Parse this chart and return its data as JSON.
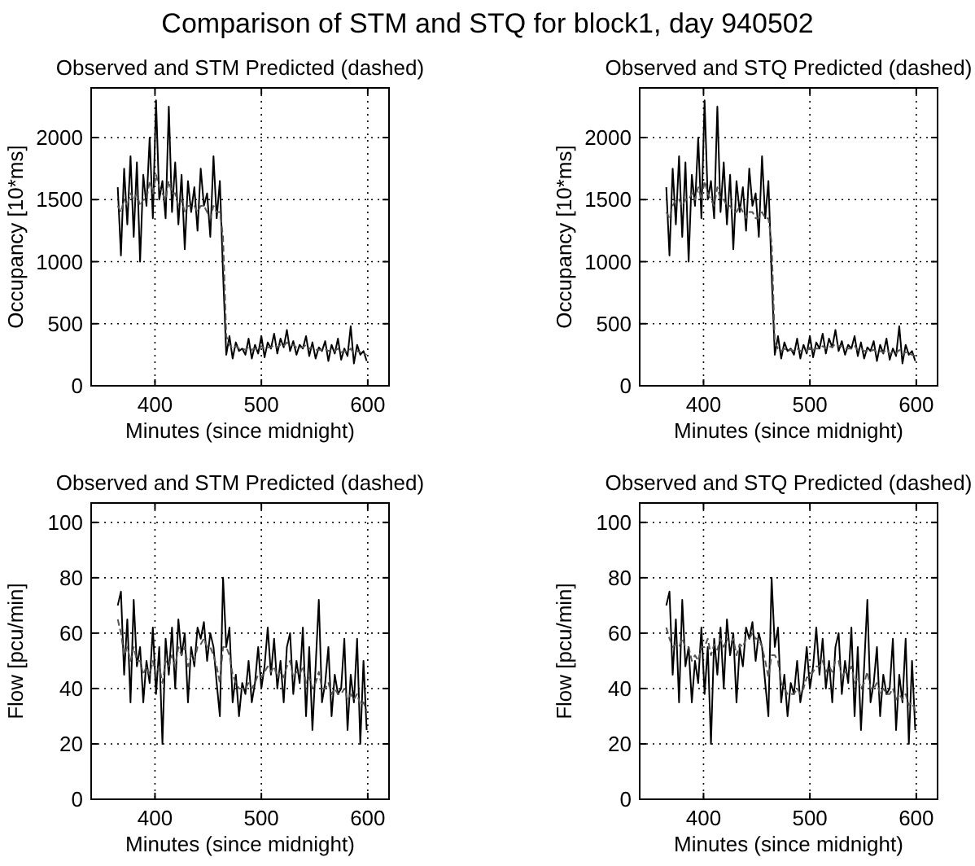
{
  "chart_data": [
    {
      "type": "line",
      "title": "Observed and STM Predicted (dashed)",
      "xlabel": "Minutes (since midnight)",
      "ylabel": "Occupancy [10*ms]",
      "annotations": [
        "Comparison of STM and STQ for block1, day 940502"
      ],
      "xlim": [
        340,
        620
      ],
      "xticks": [
        400,
        500,
        600
      ],
      "ylim": [
        0,
        2400
      ],
      "yticks": [
        0,
        500,
        1000,
        1500,
        2000
      ],
      "grid": true,
      "x": [
        365,
        368,
        371,
        374,
        377,
        380,
        383,
        386,
        389,
        392,
        395,
        398,
        401,
        404,
        407,
        410,
        413,
        416,
        419,
        422,
        425,
        428,
        431,
        434,
        437,
        440,
        443,
        446,
        449,
        452,
        455,
        458,
        461,
        464,
        467,
        470,
        473,
        476,
        479,
        482,
        485,
        488,
        491,
        494,
        497,
        500,
        503,
        506,
        509,
        512,
        515,
        518,
        521,
        524,
        527,
        530,
        533,
        536,
        539,
        542,
        545,
        548,
        551,
        554,
        557,
        560,
        563,
        566,
        569,
        572,
        575,
        578,
        581,
        584,
        587,
        590,
        593,
        596,
        599
      ],
      "series": [
        {
          "color": "#000000",
          "line_style": "solid",
          "values": [
            1600,
            1050,
            1750,
            1300,
            1850,
            1200,
            1800,
            1000,
            1700,
            1450,
            2000,
            1350,
            2300,
            1500,
            1650,
            1350,
            2250,
            1400,
            1800,
            1300,
            1700,
            1100,
            1650,
            1400,
            1600,
            1250,
            1750,
            1450,
            1550,
            1200,
            1850,
            1350,
            1650,
            900,
            250,
            400,
            220,
            350,
            280,
            300,
            250,
            380,
            220,
            330,
            260,
            400,
            230,
            350,
            300,
            420,
            260,
            380,
            310,
            450,
            280,
            360,
            250,
            330,
            300,
            400,
            240,
            350,
            220,
            310,
            280,
            360,
            200,
            330,
            260,
            380,
            210,
            300,
            240,
            480,
            180,
            330,
            250,
            280,
            200
          ]
        },
        {
          "color": "#555555",
          "line_style": "dashed",
          "values": [
            1450,
            1400,
            1500,
            1450,
            1550,
            1500,
            1550,
            1450,
            1500,
            1500,
            1650,
            1550,
            1700,
            1600,
            1550,
            1500,
            1650,
            1550,
            1550,
            1450,
            1500,
            1400,
            1450,
            1450,
            1450,
            1400,
            1450,
            1450,
            1400,
            1350,
            1450,
            1400,
            1400,
            1200,
            400,
            330,
            300,
            320,
            300,
            300,
            290,
            310,
            290,
            300,
            290,
            320,
            300,
            310,
            310,
            330,
            310,
            330,
            320,
            350,
            330,
            330,
            310,
            310,
            310,
            330,
            300,
            310,
            290,
            290,
            290,
            300,
            280,
            290,
            280,
            300,
            270,
            280,
            270,
            300,
            260,
            280,
            270,
            260,
            250
          ]
        }
      ]
    },
    {
      "type": "line",
      "title": "Observed and STQ Predicted (dashed)",
      "xlabel": "Minutes (since midnight)",
      "ylabel": "Occupancy [10*ms]",
      "xlim": [
        340,
        620
      ],
      "xticks": [
        400,
        500,
        600
      ],
      "ylim": [
        0,
        2400
      ],
      "yticks": [
        0,
        500,
        1000,
        1500,
        2000
      ],
      "grid": true,
      "x": [
        365,
        368,
        371,
        374,
        377,
        380,
        383,
        386,
        389,
        392,
        395,
        398,
        401,
        404,
        407,
        410,
        413,
        416,
        419,
        422,
        425,
        428,
        431,
        434,
        437,
        440,
        443,
        446,
        449,
        452,
        455,
        458,
        461,
        464,
        467,
        470,
        473,
        476,
        479,
        482,
        485,
        488,
        491,
        494,
        497,
        500,
        503,
        506,
        509,
        512,
        515,
        518,
        521,
        524,
        527,
        530,
        533,
        536,
        539,
        542,
        545,
        548,
        551,
        554,
        557,
        560,
        563,
        566,
        569,
        572,
        575,
        578,
        581,
        584,
        587,
        590,
        593,
        596,
        599
      ],
      "series": [
        {
          "color": "#000000",
          "line_style": "solid",
          "values": [
            1600,
            1050,
            1750,
            1300,
            1850,
            1200,
            1800,
            1000,
            1700,
            1450,
            2000,
            1350,
            2300,
            1500,
            1650,
            1350,
            2250,
            1400,
            1800,
            1300,
            1700,
            1100,
            1650,
            1400,
            1600,
            1250,
            1750,
            1450,
            1550,
            1200,
            1850,
            1350,
            1650,
            900,
            250,
            400,
            220,
            350,
            280,
            300,
            250,
            380,
            220,
            330,
            260,
            400,
            230,
            350,
            300,
            420,
            260,
            380,
            310,
            450,
            280,
            360,
            250,
            330,
            300,
            400,
            240,
            350,
            220,
            310,
            280,
            360,
            200,
            330,
            260,
            380,
            210,
            300,
            240,
            480,
            180,
            330,
            250,
            280,
            200
          ]
        },
        {
          "color": "#555555",
          "line_style": "dashed",
          "values": [
            1400,
            1350,
            1450,
            1500,
            1500,
            1450,
            1500,
            1500,
            1550,
            1500,
            1600,
            1500,
            1650,
            1550,
            1500,
            1450,
            1600,
            1500,
            1500,
            1450,
            1450,
            1400,
            1400,
            1450,
            1400,
            1350,
            1400,
            1400,
            1350,
            1350,
            1400,
            1350,
            1350,
            1150,
            350,
            300,
            280,
            300,
            280,
            290,
            280,
            300,
            280,
            290,
            280,
            310,
            290,
            300,
            300,
            320,
            300,
            320,
            310,
            340,
            320,
            320,
            300,
            300,
            300,
            320,
            290,
            300,
            280,
            280,
            280,
            290,
            270,
            280,
            270,
            290,
            260,
            270,
            260,
            290,
            250,
            270,
            260,
            250,
            240
          ]
        }
      ]
    },
    {
      "type": "line",
      "title": "Observed and STM Predicted (dashed)",
      "xlabel": "Minutes (since midnight)",
      "ylabel": "Flow [pcu/min]",
      "xlim": [
        340,
        620
      ],
      "xticks": [
        400,
        500,
        600
      ],
      "ylim": [
        0,
        107
      ],
      "yticks": [
        0,
        20,
        40,
        60,
        80,
        100
      ],
      "grid": true,
      "x": [
        365,
        368,
        371,
        374,
        377,
        380,
        383,
        386,
        389,
        392,
        395,
        398,
        401,
        404,
        407,
        410,
        413,
        416,
        419,
        422,
        425,
        428,
        431,
        434,
        437,
        440,
        443,
        446,
        449,
        452,
        455,
        458,
        461,
        464,
        467,
        470,
        473,
        476,
        479,
        482,
        485,
        488,
        491,
        494,
        497,
        500,
        503,
        506,
        509,
        512,
        515,
        518,
        521,
        524,
        527,
        530,
        533,
        536,
        539,
        542,
        545,
        548,
        551,
        554,
        557,
        560,
        563,
        566,
        569,
        572,
        575,
        578,
        581,
        584,
        587,
        590,
        593,
        596,
        599
      ],
      "series": [
        {
          "color": "#000000",
          "line_style": "solid",
          "values": [
            70,
            75,
            45,
            65,
            35,
            72,
            48,
            55,
            35,
            50,
            42,
            62,
            38,
            55,
            20,
            58,
            45,
            62,
            40,
            65,
            52,
            60,
            35,
            55,
            48,
            62,
            58,
            64,
            50,
            60,
            55,
            42,
            30,
            80,
            55,
            62,
            35,
            45,
            30,
            42,
            38,
            50,
            35,
            42,
            55,
            40,
            48,
            62,
            45,
            58,
            40,
            50,
            35,
            55,
            60,
            38,
            50,
            42,
            62,
            30,
            55,
            25,
            48,
            72,
            35,
            42,
            55,
            30,
            45,
            38,
            40,
            58,
            25,
            45,
            35,
            58,
            20,
            50,
            25
          ]
        },
        {
          "color": "#555555",
          "line_style": "dashed",
          "values": [
            65,
            60,
            52,
            55,
            50,
            55,
            50,
            50,
            45,
            48,
            45,
            50,
            45,
            48,
            42,
            50,
            48,
            52,
            48,
            55,
            52,
            55,
            48,
            52,
            50,
            55,
            56,
            58,
            55,
            55,
            52,
            48,
            42,
            55,
            55,
            52,
            45,
            42,
            40,
            40,
            40,
            42,
            40,
            42,
            45,
            44,
            46,
            48,
            46,
            48,
            44,
            46,
            44,
            48,
            50,
            44,
            46,
            45,
            48,
            42,
            44,
            40,
            42,
            46,
            40,
            40,
            42,
            38,
            40,
            38,
            38,
            40,
            36,
            38,
            36,
            38,
            34,
            35,
            32
          ]
        }
      ]
    },
    {
      "type": "line",
      "title": "Observed and STQ Predicted (dashed)",
      "xlabel": "Minutes (since midnight)",
      "ylabel": "Flow [pcu/min]",
      "xlim": [
        340,
        620
      ],
      "xticks": [
        400,
        500,
        600
      ],
      "ylim": [
        0,
        107
      ],
      "yticks": [
        0,
        20,
        40,
        60,
        80,
        100
      ],
      "grid": true,
      "x": [
        365,
        368,
        371,
        374,
        377,
        380,
        383,
        386,
        389,
        392,
        395,
        398,
        401,
        404,
        407,
        410,
        413,
        416,
        419,
        422,
        425,
        428,
        431,
        434,
        437,
        440,
        443,
        446,
        449,
        452,
        455,
        458,
        461,
        464,
        467,
        470,
        473,
        476,
        479,
        482,
        485,
        488,
        491,
        494,
        497,
        500,
        503,
        506,
        509,
        512,
        515,
        518,
        521,
        524,
        527,
        530,
        533,
        536,
        539,
        542,
        545,
        548,
        551,
        554,
        557,
        560,
        563,
        566,
        569,
        572,
        575,
        578,
        581,
        584,
        587,
        590,
        593,
        596,
        599
      ],
      "series": [
        {
          "color": "#000000",
          "line_style": "solid",
          "values": [
            70,
            75,
            45,
            65,
            35,
            72,
            48,
            55,
            35,
            50,
            42,
            62,
            38,
            55,
            20,
            58,
            45,
            62,
            40,
            65,
            52,
            60,
            35,
            55,
            48,
            62,
            58,
            64,
            50,
            60,
            55,
            42,
            30,
            80,
            55,
            62,
            35,
            45,
            30,
            42,
            38,
            50,
            35,
            42,
            55,
            40,
            48,
            62,
            45,
            58,
            40,
            50,
            35,
            55,
            60,
            38,
            50,
            42,
            62,
            30,
            55,
            25,
            48,
            72,
            35,
            42,
            55,
            30,
            45,
            38,
            40,
            58,
            25,
            45,
            35,
            58,
            20,
            50,
            25
          ]
        },
        {
          "color": "#555555",
          "line_style": "dashed",
          "values": [
            62,
            58,
            55,
            56,
            55,
            58,
            55,
            55,
            50,
            52,
            50,
            55,
            55,
            58,
            52,
            56,
            54,
            58,
            55,
            58,
            56,
            58,
            52,
            56,
            55,
            58,
            58,
            60,
            58,
            58,
            55,
            50,
            44,
            52,
            52,
            50,
            42,
            40,
            38,
            38,
            38,
            40,
            38,
            40,
            44,
            44,
            46,
            48,
            48,
            50,
            46,
            48,
            46,
            50,
            50,
            44,
            46,
            46,
            48,
            42,
            44,
            40,
            42,
            46,
            40,
            40,
            42,
            38,
            40,
            38,
            38,
            40,
            36,
            38,
            36,
            38,
            34,
            35,
            32
          ]
        }
      ]
    }
  ]
}
